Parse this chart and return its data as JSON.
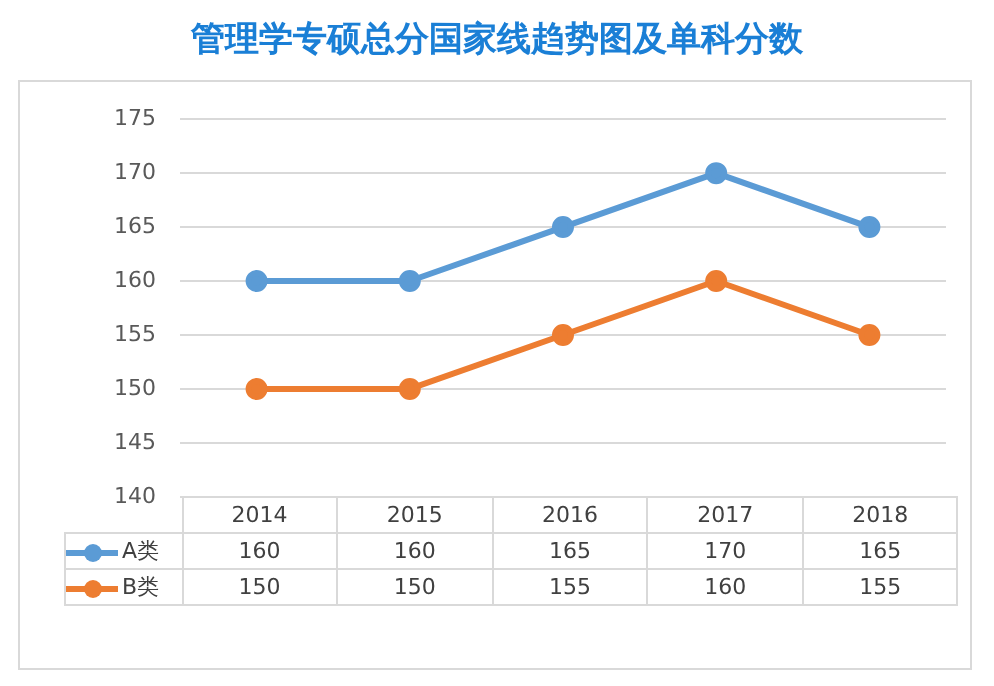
{
  "chart_data": {
    "type": "line",
    "title": "管理学专硕总分国家线趋势图及单科分数",
    "categories": [
      "2014",
      "2015",
      "2016",
      "2017",
      "2018"
    ],
    "series": [
      {
        "name": "A类",
        "color": "#5b9bd5",
        "values": [
          160,
          160,
          165,
          170,
          165
        ]
      },
      {
        "name": "B类",
        "color": "#ed7d31",
        "values": [
          150,
          150,
          155,
          160,
          155
        ]
      }
    ],
    "ylim": [
      140,
      175
    ],
    "yticks": [
      140,
      145,
      150,
      155,
      160,
      165,
      170,
      175
    ],
    "grid": "y",
    "legend": "bottom",
    "marker": "circle",
    "data_labels": true
  }
}
